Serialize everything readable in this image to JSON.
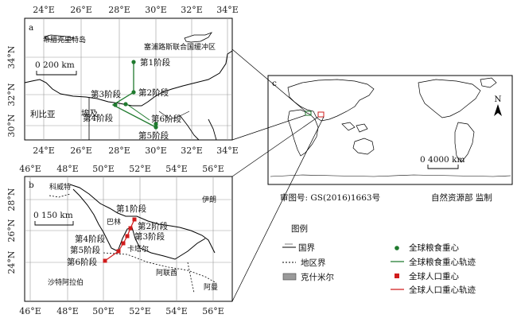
{
  "panel_a": {
    "letter": "a",
    "top_ticks": [
      "24°E",
      "26°E",
      "28°E",
      "30°E",
      "32°E",
      "34°E"
    ],
    "bottom_ticks": [
      "24°E",
      "26°E",
      "28°E",
      "30°E",
      "32°E",
      "34°E"
    ],
    "left_ticks": [
      "34°N",
      "32°N",
      "30°N"
    ],
    "scale_text": "0 200 km",
    "places": [
      "希腊克里特岛",
      "塞浦路斯联合国缓冲区",
      "利比亚",
      "埃及"
    ],
    "stage_labels": [
      "第1阶段",
      "第2阶段",
      "第3阶段",
      "第4阶段",
      "第5阶段",
      "第6阶段"
    ]
  },
  "panel_b": {
    "letter": "b",
    "top_ticks": [
      "46°E",
      "48°E",
      "50°E",
      "52°E",
      "54°E",
      "56°E"
    ],
    "bottom_ticks": [
      "46°E",
      "48°E",
      "50°E",
      "52°E",
      "54°E",
      "56°E"
    ],
    "left_ticks": [
      "28°N",
      "26°N",
      "24°N"
    ],
    "scale_text": "0 150 km",
    "places": [
      "科威特",
      "伊朗",
      "巴林",
      "卡塔尔",
      "阿联酋",
      "阿曼",
      "沙特阿拉伯"
    ],
    "stage_labels": [
      "第1阶段",
      "第2阶段",
      "第3阶段",
      "第4阶段",
      "第5阶段",
      "第6阶段"
    ]
  },
  "panel_c": {
    "letter": "c",
    "scale_text": "0 4000 km",
    "north": "N"
  },
  "map_review_no": "审图号: GS(2016)1663号",
  "authority": "自然资源部 监制",
  "legend": {
    "title": "图例",
    "items": [
      {
        "label": "国界",
        "symbol": "boundary"
      },
      {
        "label": "地区界",
        "symbol": "dotted"
      },
      {
        "label": "克什米尔",
        "symbol": "gray-box"
      },
      {
        "label": "全球粮食重心",
        "symbol": "green-dot",
        "color": "#1f7a2e"
      },
      {
        "label": "全球粮食重心轨迹",
        "symbol": "green-line",
        "color": "#1f7a2e"
      },
      {
        "label": "全球人口重心",
        "symbol": "red-square",
        "color": "#d01c1c"
      },
      {
        "label": "全球人口重心轨迹",
        "symbol": "red-line",
        "color": "#d01c1c"
      }
    ]
  },
  "colors": {
    "grain": "#1f7a2e",
    "population": "#d01c1c"
  }
}
